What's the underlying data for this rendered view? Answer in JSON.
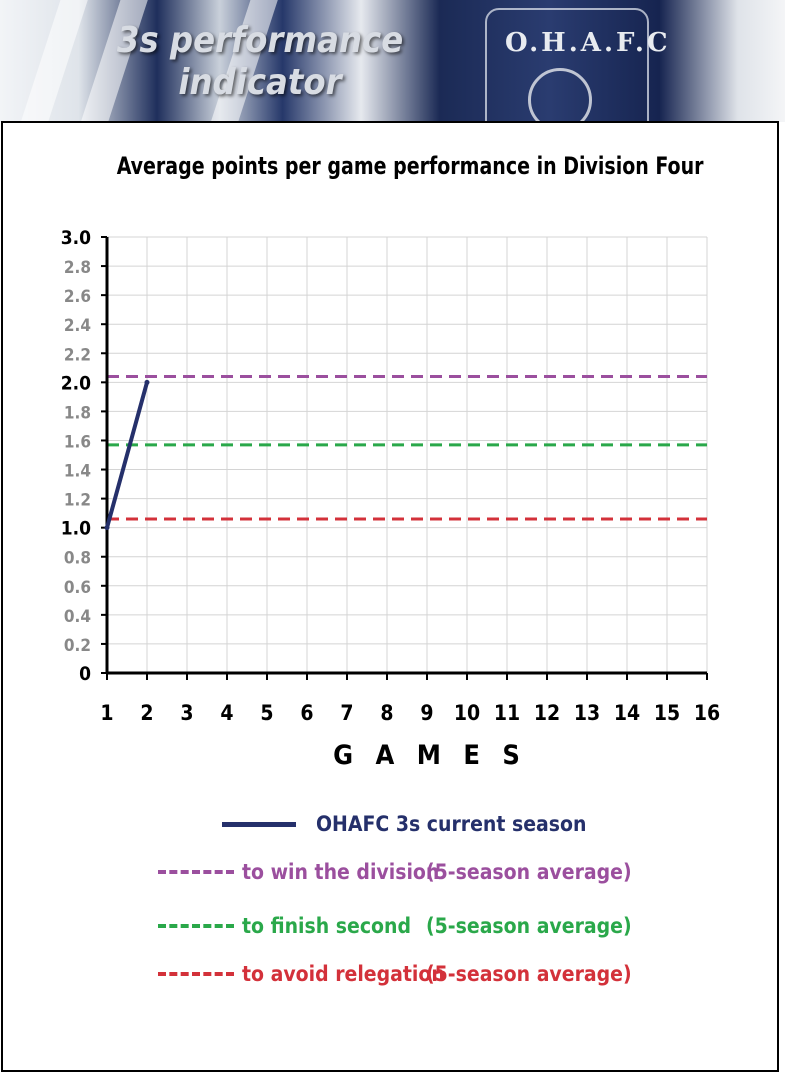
{
  "banner": {
    "title_line1": "3s performance",
    "title_line2": "indicator",
    "crest_text": "O.H.A.F.C"
  },
  "chart_data": {
    "type": "line",
    "title": "Average points per game performance in Division Four",
    "xlabel": "G A M E S",
    "ylabel": "",
    "x_ticks": [
      1,
      2,
      3,
      4,
      5,
      6,
      7,
      8,
      9,
      10,
      11,
      12,
      13,
      14,
      15,
      16
    ],
    "y_ticks": [
      "0",
      "0.2",
      "0.4",
      "0.6",
      "0.8",
      "1.0",
      "1.2",
      "1.4",
      "1.6",
      "1.8",
      "2.0",
      "2.2",
      "2.4",
      "2.6",
      "2.8",
      "3.0"
    ],
    "xlim": [
      1,
      16
    ],
    "ylim": [
      0,
      3
    ],
    "grid": true,
    "series": [
      {
        "name": "OHAFC 3s current season",
        "x": [
          1,
          2
        ],
        "y": [
          1.0,
          2.0
        ],
        "color": "#25306b",
        "style": "solid"
      }
    ],
    "reference_lines": [
      {
        "name": "to win the division",
        "note": "(5-season average)",
        "y": 2.04,
        "color": "#9b4f9e",
        "style": "dashed"
      },
      {
        "name": "to finish second",
        "note": "(5-season average)",
        "y": 1.57,
        "color": "#2aa84a",
        "style": "dashed"
      },
      {
        "name": "to avoid relegation",
        "note": "(5-season average)",
        "y": 1.06,
        "color": "#d3313a",
        "style": "dashed"
      }
    ],
    "legend_position": "bottom"
  }
}
